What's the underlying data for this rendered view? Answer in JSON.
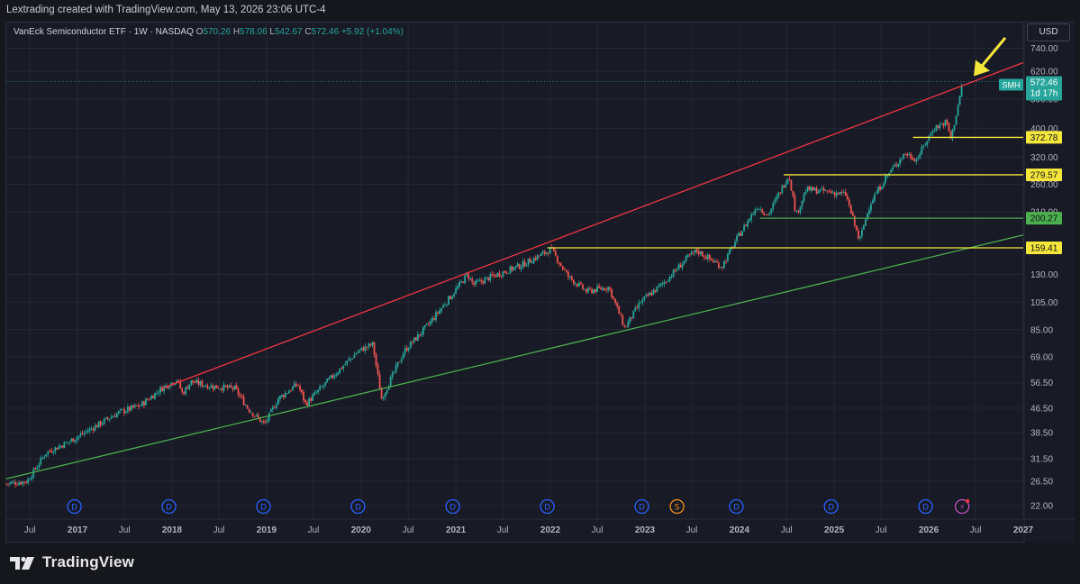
{
  "caption": "Lextrading created with TradingView.com, May 13, 2026 23:06 UTC-4",
  "legend": {
    "title": "VanEck Semiconductor ETF · 1W · NASDAQ",
    "o_label": "O",
    "o_value": "570.26",
    "h_label": "H",
    "h_value": "578.06",
    "l_label": "L",
    "l_value": "542.67",
    "c_label": "C",
    "c_value": "572.46",
    "change": "+5.92 (+1.04%)"
  },
  "currency": "USD",
  "brand": "TradingView",
  "colors": {
    "up": "#26a69a",
    "down": "#ef5350",
    "resistance": "#f23645",
    "support": "#4caf50",
    "level_yellow": "#f5e63c",
    "level_green": "#4caf50",
    "arrow": "#f5e63c",
    "grid": "#252836"
  },
  "chart_data": {
    "type": "candlestick",
    "symbol": "SMH",
    "scale": "log",
    "interval": "1W",
    "grid": true,
    "x_range": [
      "2016-04-01",
      "2027-01-01"
    ],
    "y_ticks": [
      740.0,
      620.0,
      500.0,
      400.0,
      320.0,
      260.0,
      210.0,
      130.0,
      105.0,
      85.0,
      69.0,
      56.5,
      46.5,
      38.5,
      31.5,
      26.5,
      22.0
    ],
    "x_ticks": [
      {
        "date": "2016-07-01",
        "label": "Jul"
      },
      {
        "date": "2017-01-01",
        "label": "2017"
      },
      {
        "date": "2017-07-01",
        "label": "Jul"
      },
      {
        "date": "2018-01-01",
        "label": "2018"
      },
      {
        "date": "2018-07-01",
        "label": "Jul"
      },
      {
        "date": "2019-01-01",
        "label": "2019"
      },
      {
        "date": "2019-07-01",
        "label": "Jul"
      },
      {
        "date": "2020-01-01",
        "label": "2020"
      },
      {
        "date": "2020-07-01",
        "label": "Jul"
      },
      {
        "date": "2021-01-01",
        "label": "2021"
      },
      {
        "date": "2021-07-01",
        "label": "Jul"
      },
      {
        "date": "2022-01-01",
        "label": "2022"
      },
      {
        "date": "2022-07-01",
        "label": "Jul"
      },
      {
        "date": "2023-01-01",
        "label": "2023"
      },
      {
        "date": "2023-07-01",
        "label": "Jul"
      },
      {
        "date": "2024-01-01",
        "label": "2024"
      },
      {
        "date": "2024-07-01",
        "label": "Jul"
      },
      {
        "date": "2025-01-01",
        "label": "2025"
      },
      {
        "date": "2025-07-01",
        "label": "Jul"
      },
      {
        "date": "2026-01-01",
        "label": "2026"
      },
      {
        "date": "2026-07-01",
        "label": "Jul"
      },
      {
        "date": "2027-01-01",
        "label": "2027"
      }
    ],
    "price_path": [
      [
        "2016-04-01",
        26.0
      ],
      [
        "2016-06-20",
        26.5
      ],
      [
        "2016-09-01",
        33.0
      ],
      [
        "2016-12-01",
        36.0
      ],
      [
        "2017-03-01",
        40.0
      ],
      [
        "2017-06-10",
        45.0
      ],
      [
        "2017-09-01",
        47.5
      ],
      [
        "2017-11-20",
        54.0
      ],
      [
        "2018-01-20",
        58.0
      ],
      [
        "2018-02-10",
        52.0
      ],
      [
        "2018-03-15",
        57.0
      ],
      [
        "2018-06-01",
        55.0
      ],
      [
        "2018-09-01",
        54.0
      ],
      [
        "2018-10-20",
        46.5
      ],
      [
        "2018-12-24",
        41.0
      ],
      [
        "2019-02-15",
        50.0
      ],
      [
        "2019-05-01",
        56.0
      ],
      [
        "2019-06-01",
        48.0
      ],
      [
        "2019-09-01",
        58.0
      ],
      [
        "2019-12-20",
        72.0
      ],
      [
        "2020-02-15",
        76.0
      ],
      [
        "2020-03-20",
        50.0
      ],
      [
        "2020-06-15",
        72.0
      ],
      [
        "2020-09-15",
        88.0
      ],
      [
        "2020-12-20",
        112.0
      ],
      [
        "2021-02-15",
        130.0
      ],
      [
        "2021-03-10",
        120.0
      ],
      [
        "2021-05-20",
        128.0
      ],
      [
        "2021-09-15",
        140.0
      ],
      [
        "2021-12-20",
        155.0
      ],
      [
        "2022-01-03",
        158.0
      ],
      [
        "2022-03-10",
        128.0
      ],
      [
        "2022-05-20",
        114.0
      ],
      [
        "2022-08-15",
        118.0
      ],
      [
        "2022-10-15",
        86.0
      ],
      [
        "2022-12-15",
        105.0
      ],
      [
        "2023-03-15",
        122.0
      ],
      [
        "2023-06-15",
        148.0
      ],
      [
        "2023-07-20",
        156.0
      ],
      [
        "2023-10-25",
        138.0
      ],
      [
        "2023-12-20",
        170.0
      ],
      [
        "2024-03-10",
        220.0
      ],
      [
        "2024-04-20",
        205.0
      ],
      [
        "2024-07-10",
        280.0
      ],
      [
        "2024-08-07",
        205.0
      ],
      [
        "2024-09-15",
        250.0
      ],
      [
        "2024-12-15",
        245.0
      ],
      [
        "2025-02-15",
        240.0
      ],
      [
        "2025-04-08",
        168.0
      ],
      [
        "2025-05-20",
        225.0
      ],
      [
        "2025-07-20",
        275.0
      ],
      [
        "2025-10-01",
        330.0
      ],
      [
        "2025-11-15",
        315.0
      ],
      [
        "2026-01-20",
        400.0
      ],
      [
        "2026-03-10",
        420.0
      ],
      [
        "2026-03-28",
        368.0
      ],
      [
        "2026-05-13",
        572.46
      ]
    ],
    "trendlines": [
      {
        "role": "resistance",
        "from": [
          "2017-11-20",
          54.0
        ],
        "to": [
          "2027-01-01",
          662.0
        ]
      },
      {
        "role": "support",
        "from": [
          "2016-04-01",
          27.0
        ],
        "to": [
          "2027-01-01",
          176.0
        ]
      }
    ],
    "horizontal_levels": [
      {
        "value": 372.78,
        "label": "372.78",
        "from": "2025-11-01",
        "color": "yellow"
      },
      {
        "value": 279.57,
        "label": "279.57",
        "from": "2024-06-20",
        "color": "yellow"
      },
      {
        "value": 200.27,
        "label": "200.27",
        "from": "2024-03-20",
        "color": "green"
      },
      {
        "value": 159.41,
        "label": "159.41",
        "from": "2021-12-20",
        "color": "yellow"
      }
    ],
    "last_price": {
      "symbol": "SMH",
      "value": "572.46",
      "countdown": "1d 17h"
    },
    "event_markers": [
      {
        "date": "2016-12-20",
        "letter": "D"
      },
      {
        "date": "2017-12-20",
        "letter": "D"
      },
      {
        "date": "2018-12-20",
        "letter": "D"
      },
      {
        "date": "2019-12-20",
        "letter": "D"
      },
      {
        "date": "2020-12-20",
        "letter": "D"
      },
      {
        "date": "2021-12-20",
        "letter": "D"
      },
      {
        "date": "2022-12-20",
        "letter": "D"
      },
      {
        "date": "2023-05-05",
        "letter": "S"
      },
      {
        "date": "2023-12-20",
        "letter": "D"
      },
      {
        "date": "2024-12-20",
        "letter": "D"
      },
      {
        "date": "2025-12-20",
        "letter": "D"
      },
      {
        "date": "2026-05-10",
        "letter": "⚡"
      }
    ]
  }
}
